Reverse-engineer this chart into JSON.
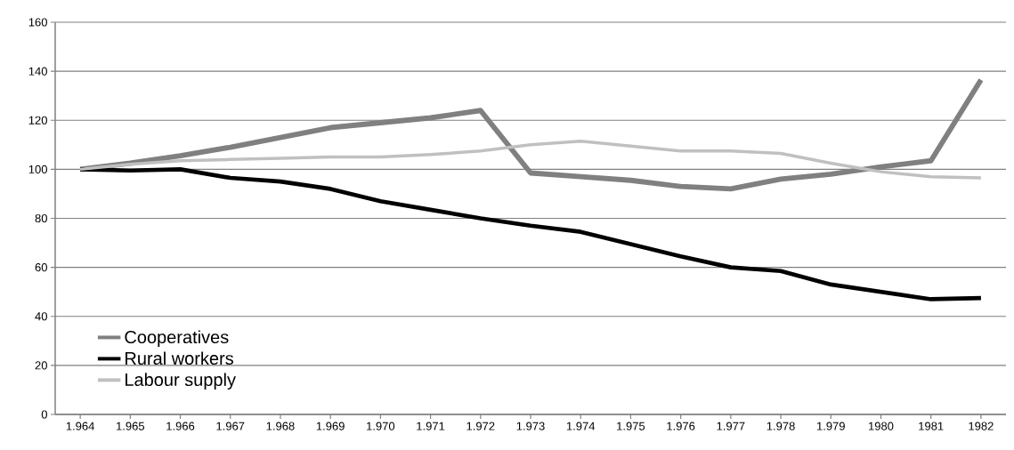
{
  "chart_data": {
    "type": "line",
    "categories": [
      "1.964",
      "1.965",
      "1.966",
      "1.967",
      "1.968",
      "1.969",
      "1.970",
      "1.971",
      "1.972",
      "1.973",
      "1.974",
      "1.975",
      "1.976",
      "1.977",
      "1.978",
      "1.979",
      "1980",
      "1981",
      "1982"
    ],
    "series": [
      {
        "name": "Cooperatives",
        "color": "#808080",
        "values": [
          100,
          102.5,
          105.5,
          109,
          113,
          117,
          119,
          121,
          124,
          98.5,
          97,
          95.5,
          93,
          92,
          96,
          98,
          101,
          103.5,
          136.5
        ]
      },
      {
        "name": "Rural workers",
        "color": "#000000",
        "values": [
          100,
          99.5,
          100,
          96.5,
          95,
          92,
          87,
          83.5,
          80,
          77,
          74.5,
          69.5,
          64.5,
          60,
          58.5,
          53,
          50,
          47,
          47.5
        ]
      },
      {
        "name": "Labour  supply",
        "color": "#c0c0c0",
        "values": [
          100,
          102,
          103.5,
          104,
          104.5,
          105,
          105,
          106,
          107.5,
          110,
          111.5,
          109.5,
          107.5,
          107.5,
          106.5,
          102.5,
          99,
          97,
          96.5
        ]
      }
    ],
    "ylim": [
      0,
      160
    ],
    "yticks": [
      0,
      20,
      40,
      60,
      80,
      100,
      120,
      140,
      160
    ],
    "grid": "y",
    "legend": "bottom left",
    "marker": "none",
    "line_style": "solid"
  }
}
